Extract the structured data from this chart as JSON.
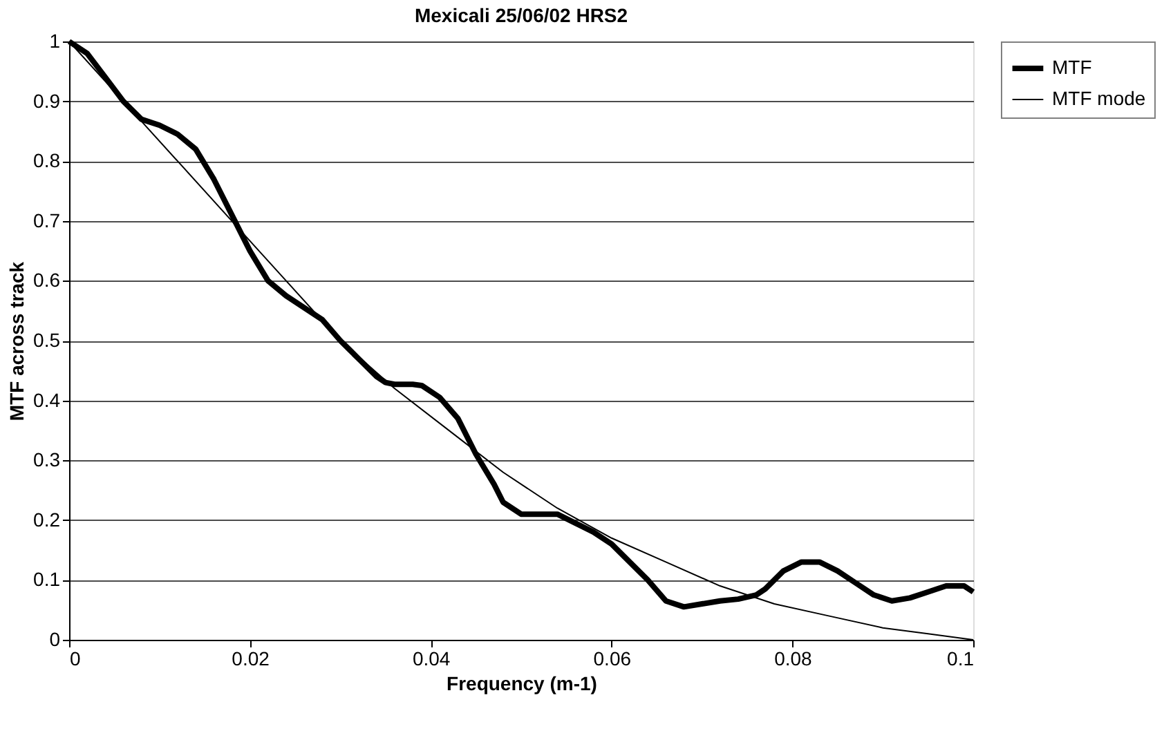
{
  "chart_data": {
    "type": "line",
    "title": "Mexicali 25/06/02 HRS2",
    "xlabel": "Frequency (m-1)",
    "ylabel": "MTF across track",
    "xlim": [
      0,
      0.1
    ],
    "xticks": [
      0,
      0.02,
      0.04,
      0.06,
      0.08,
      0.1
    ],
    "ylim": [
      0,
      1
    ],
    "yticks": [
      0,
      0.1,
      0.2,
      0.3,
      0.4,
      0.5,
      0.6,
      0.7,
      0.8,
      0.9,
      1
    ],
    "grid": "y",
    "legend": "right",
    "marker": "none",
    "line_style": "solid",
    "series": [
      {
        "name": "MTF",
        "color": "#000000",
        "x": [
          0,
          0.002,
          0.004,
          0.006,
          0.008,
          0.01,
          0.012,
          0.014,
          0.016,
          0.018,
          0.019,
          0.02,
          0.022,
          0.024,
          0.026,
          0.028,
          0.03,
          0.032,
          0.034,
          0.035,
          0.036,
          0.038,
          0.039,
          0.041,
          0.043,
          0.045,
          0.047,
          0.048,
          0.05,
          0.052,
          0.054,
          0.056,
          0.058,
          0.06,
          0.062,
          0.064,
          0.066,
          0.068,
          0.07,
          0.072,
          0.074,
          0.076,
          0.077,
          0.079,
          0.081,
          0.083,
          0.085,
          0.087,
          0.089,
          0.091,
          0.093,
          0.095,
          0.097,
          0.099,
          0.1
        ],
        "values": [
          1,
          0.98,
          0.94,
          0.9,
          0.87,
          0.86,
          0.845,
          0.82,
          0.77,
          0.71,
          0.68,
          0.65,
          0.6,
          0.575,
          0.555,
          0.535,
          0.5,
          0.47,
          0.44,
          0.43,
          0.427,
          0.427,
          0.425,
          0.405,
          0.37,
          0.31,
          0.26,
          0.23,
          0.21,
          0.21,
          0.21,
          0.195,
          0.18,
          0.16,
          0.13,
          0.1,
          0.065,
          0.055,
          0.06,
          0.065,
          0.068,
          0.075,
          0.085,
          0.115,
          0.13,
          0.13,
          0.115,
          0.095,
          0.075,
          0.065,
          0.07,
          0.08,
          0.09,
          0.09,
          0.08
        ]
      },
      {
        "name": "MTF mode",
        "color": "#000000",
        "x": [
          0,
          0.006,
          0.012,
          0.018,
          0.024,
          0.03,
          0.036,
          0.042,
          0.048,
          0.054,
          0.06,
          0.066,
          0.072,
          0.078,
          0.084,
          0.09,
          0.095,
          0.1
        ],
        "values": [
          1,
          0.9,
          0.8,
          0.7,
          0.6,
          0.5,
          0.42,
          0.35,
          0.28,
          0.22,
          0.17,
          0.13,
          0.09,
          0.06,
          0.04,
          0.02,
          0.01,
          0
        ]
      }
    ]
  }
}
